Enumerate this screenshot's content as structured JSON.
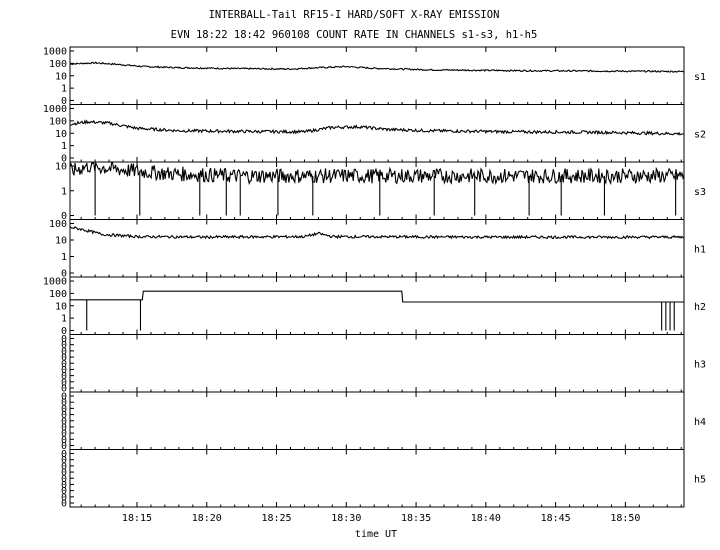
{
  "title_line1": "INTERBALL-Tail RF15-I HARD/SOFT X-RAY EMISSION",
  "title_line2": "EVN 18:22 18:42 960108  COUNT RATE IN CHANNELS s1-s3, h1-h5",
  "chart_data": {
    "type": "line",
    "xlabel": "time UT",
    "x_ticks": [
      "18:15",
      "18:20",
      "18:25",
      "18:30",
      "18:35",
      "18:40",
      "18:45",
      "18:50"
    ],
    "x_tick_minutes": [
      15,
      20,
      25,
      30,
      35,
      40,
      45,
      50
    ],
    "xlim_minutes_after_18_00": [
      10.2,
      54.2
    ],
    "y_scale": "log",
    "panels": [
      {
        "name": "s1",
        "tick_labels": [
          "1000",
          "100",
          "10",
          "1",
          "0"
        ],
        "knots": [
          [
            10.2,
            90
          ],
          [
            12,
            110
          ],
          [
            13.5,
            85
          ],
          [
            15.5,
            55
          ],
          [
            18,
            45
          ],
          [
            22,
            38
          ],
          [
            26,
            35
          ],
          [
            28,
            45
          ],
          [
            30,
            55
          ],
          [
            32,
            40
          ],
          [
            36,
            30
          ],
          [
            42,
            26
          ],
          [
            48,
            24
          ],
          [
            54.2,
            22
          ]
        ],
        "noise": 0.06,
        "dips": []
      },
      {
        "name": "s2",
        "tick_labels": [
          "1000",
          "100",
          "10",
          "1",
          "0"
        ],
        "knots": [
          [
            10.2,
            55
          ],
          [
            11.5,
            85
          ],
          [
            13,
            65
          ],
          [
            15,
            25
          ],
          [
            18,
            16
          ],
          [
            23,
            14
          ],
          [
            27,
            13
          ],
          [
            29,
            30
          ],
          [
            31,
            33
          ],
          [
            33,
            20
          ],
          [
            36,
            16
          ],
          [
            42,
            13
          ],
          [
            48,
            12
          ],
          [
            54.2,
            9
          ]
        ],
        "noise": 0.12,
        "dips": []
      },
      {
        "name": "s3",
        "tick_labels": [
          "10",
          "1",
          "0"
        ],
        "knots": [
          [
            10.2,
            6
          ],
          [
            11.5,
            10
          ],
          [
            14,
            7
          ],
          [
            17,
            5
          ],
          [
            22,
            4
          ],
          [
            30,
            4
          ],
          [
            40,
            4
          ],
          [
            50,
            4
          ],
          [
            54.2,
            4
          ]
        ],
        "noise": 0.3,
        "dips": [
          12.0,
          15.2,
          19.5,
          21.4,
          22.4,
          25.1,
          27.6,
          32.4,
          36.3,
          39.2,
          43.1,
          45.4,
          48.5,
          53.6
        ]
      },
      {
        "name": "h1",
        "tick_labels": [
          "100",
          "10",
          "1",
          "0"
        ],
        "knots": [
          [
            10.2,
            60
          ],
          [
            11,
            45
          ],
          [
            12.5,
            22
          ],
          [
            15,
            16
          ],
          [
            20,
            15
          ],
          [
            27,
            16
          ],
          [
            28,
            25
          ],
          [
            29,
            16
          ],
          [
            40,
            15
          ],
          [
            50,
            15
          ],
          [
            54.2,
            15
          ]
        ],
        "noise": 0.08,
        "dips": []
      },
      {
        "name": "h2",
        "tick_labels": [
          "1000",
          "100",
          "10",
          "1",
          "0"
        ],
        "steps": [
          [
            10.2,
            30
          ],
          [
            15.4,
            150
          ],
          [
            34,
            20
          ],
          [
            52.5,
            20
          ],
          [
            53.6,
            20
          ]
        ],
        "noise": 0,
        "dips": [
          11.4,
          15.25,
          52.6,
          52.9,
          53.2,
          53.5
        ]
      },
      {
        "name": "h3",
        "tick_labels": [
          "0",
          "0",
          "0",
          "0",
          "0",
          "0",
          "0",
          "0",
          "0"
        ]
      },
      {
        "name": "h4",
        "tick_labels": [
          "0",
          "0",
          "0",
          "0",
          "0",
          "0",
          "0",
          "0",
          "0"
        ]
      },
      {
        "name": "h5",
        "tick_labels": [
          "0",
          "0",
          "0",
          "0",
          "0",
          "0",
          "0",
          "0",
          "0"
        ]
      }
    ]
  }
}
